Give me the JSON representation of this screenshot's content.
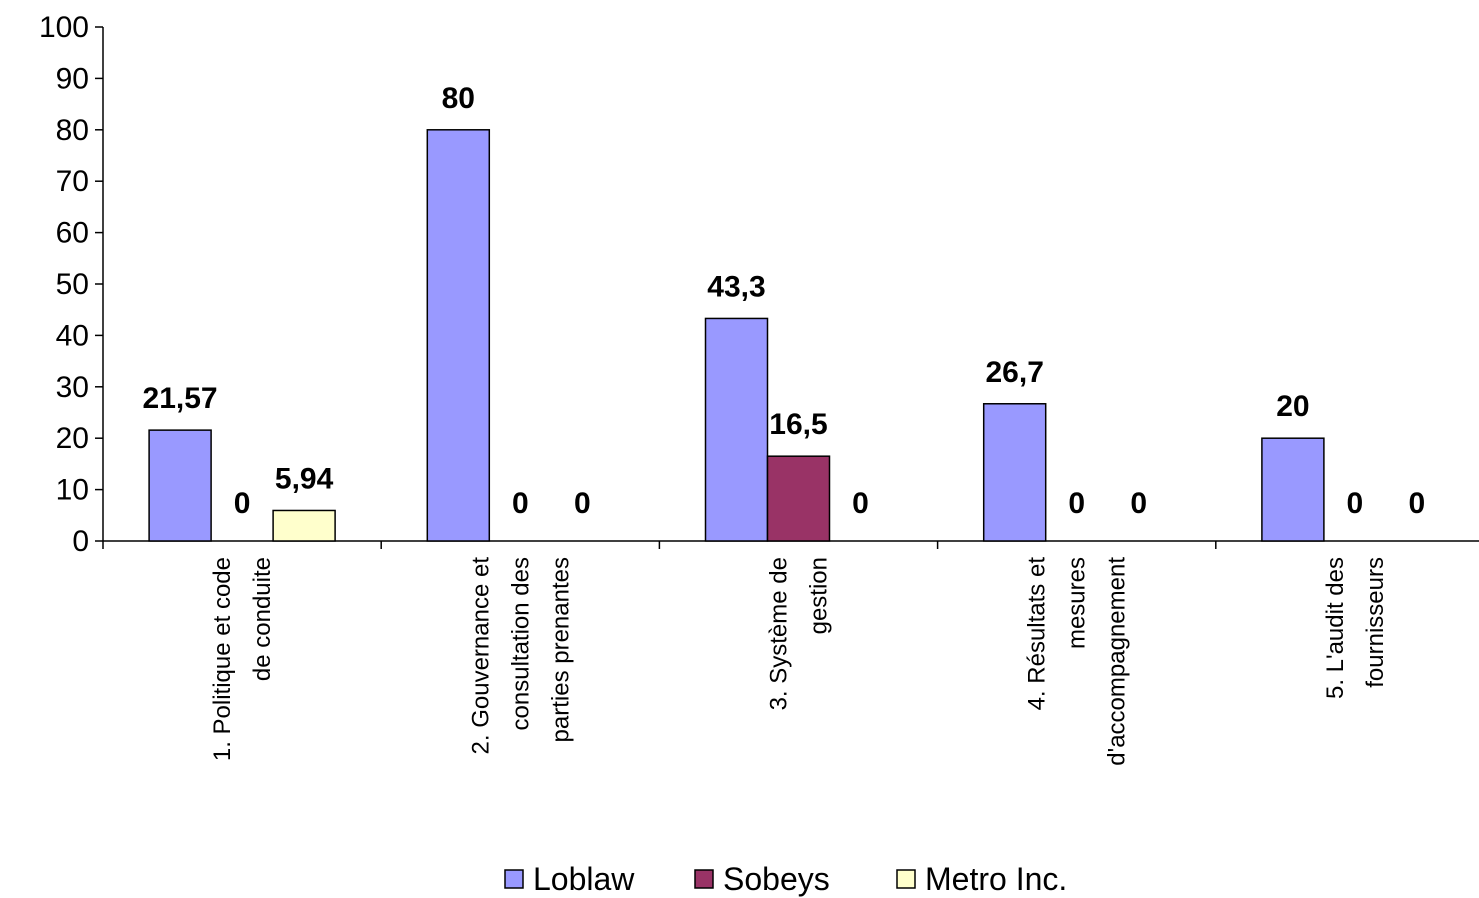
{
  "chart_data": {
    "type": "bar",
    "categories": [
      [
        "1. Politique et code",
        "de conduite"
      ],
      [
        "2. Gouvernance et",
        "consultation des",
        "parties prenantes"
      ],
      [
        "3. Système de",
        "gestion"
      ],
      [
        "4. Résultats et",
        "mesures",
        "d'accompagnement"
      ],
      [
        "5. L'audit des",
        "fournisseurs"
      ]
    ],
    "series": [
      {
        "name": "Loblaw",
        "color": "#9999ff",
        "values": [
          21.57,
          80,
          43.3,
          26.7,
          20
        ],
        "labels": [
          "21,57",
          "80",
          "43,3",
          "26,7",
          "20"
        ]
      },
      {
        "name": "Sobeys",
        "color": "#993366",
        "values": [
          0,
          0,
          16.5,
          0,
          0
        ],
        "labels": [
          "0",
          "0",
          "16,5",
          "0",
          "0"
        ]
      },
      {
        "name": "Metro Inc.",
        "color": "#ffffcc",
        "values": [
          5.94,
          0,
          0,
          0,
          0
        ],
        "labels": [
          "5,94",
          "0",
          "0",
          "0",
          "0"
        ]
      }
    ],
    "ylim": [
      0,
      100
    ],
    "yticks": [
      "0",
      "10",
      "20",
      "30",
      "40",
      "50",
      "60",
      "70",
      "80",
      "90",
      "100"
    ],
    "title": "",
    "xlabel": "",
    "ylabel": "",
    "grid": false,
    "legend_position": "bottom"
  }
}
